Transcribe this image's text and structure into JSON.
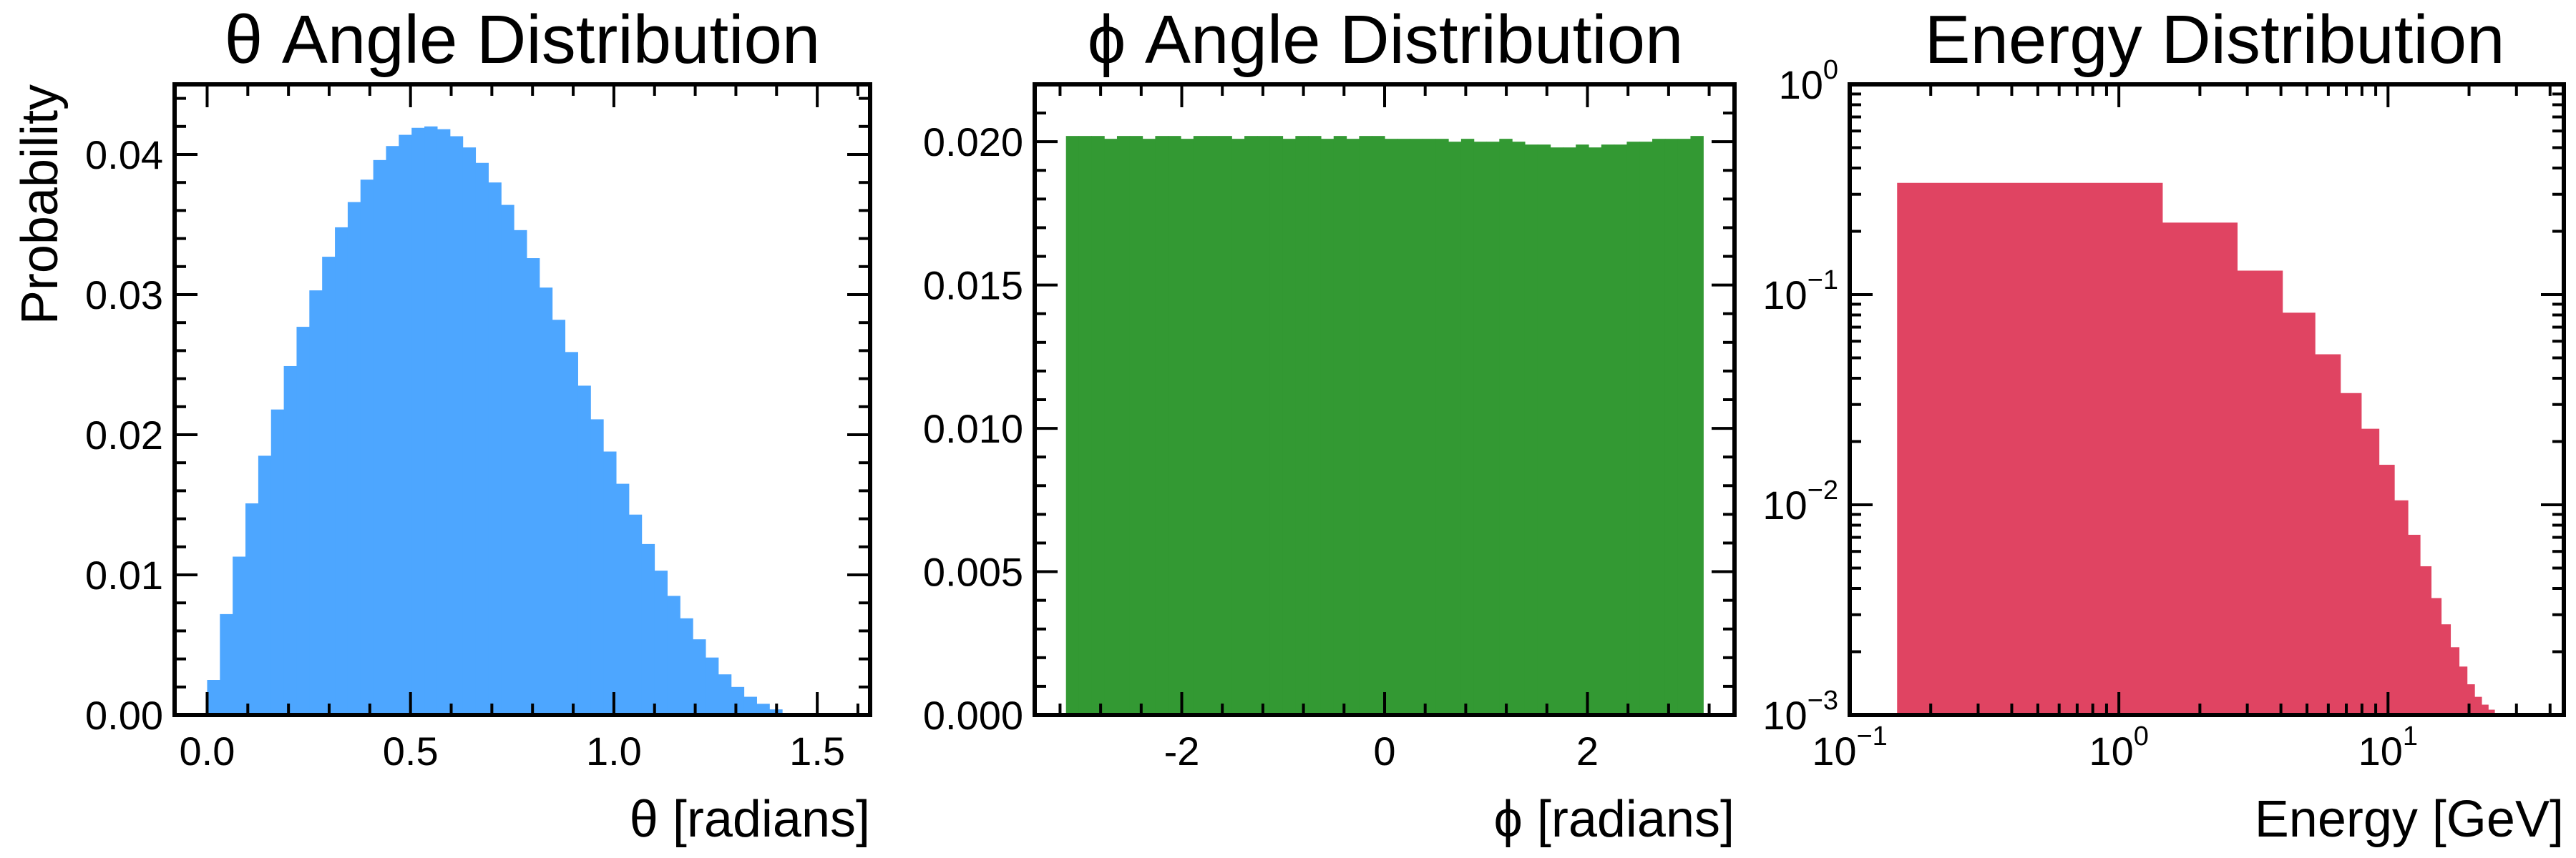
{
  "chart_data": [
    {
      "type": "bar",
      "title": "θ Angle Distribution",
      "xlabel": "θ [radians]",
      "ylabel": "Probability",
      "xlim": [
        -0.08,
        1.63
      ],
      "ylim": [
        0,
        0.045
      ],
      "xticks": [
        0.0,
        0.5,
        1.0,
        1.5
      ],
      "xtick_labels": [
        "0.0",
        "0.5",
        "1.0",
        "1.5"
      ],
      "yticks": [
        0,
        0.01,
        0.02,
        0.03,
        0.04
      ],
      "ytick_labels": [
        "0.00",
        "0.01",
        "0.02",
        "0.03",
        "0.04"
      ],
      "color": "#4da6ff",
      "bin_edges": [
        0.0,
        0.0314,
        0.0628,
        0.0942,
        0.1257,
        0.1571,
        0.1885,
        0.2199,
        0.2513,
        0.2827,
        0.3142,
        0.3456,
        0.377,
        0.4084,
        0.4398,
        0.4712,
        0.5027,
        0.5341,
        0.5655,
        0.5969,
        0.6283,
        0.6597,
        0.6912,
        0.7226,
        0.754,
        0.7854,
        0.8168,
        0.8482,
        0.8796,
        0.9111,
        0.9425,
        0.9739,
        1.0053,
        1.0367,
        1.0681,
        1.0996,
        1.131,
        1.1624,
        1.1938,
        1.2252,
        1.2566,
        1.2881,
        1.3195,
        1.3509,
        1.3823,
        1.4137,
        1.4451,
        1.4765,
        1.508,
        1.5394,
        1.5708
      ],
      "values": [
        0.0025,
        0.0072,
        0.0113,
        0.0151,
        0.0185,
        0.0218,
        0.0249,
        0.0277,
        0.0303,
        0.0327,
        0.0348,
        0.0366,
        0.0382,
        0.0396,
        0.0406,
        0.0414,
        0.0419,
        0.042,
        0.0418,
        0.0413,
        0.0405,
        0.0394,
        0.038,
        0.0364,
        0.0346,
        0.0326,
        0.0305,
        0.0282,
        0.0259,
        0.0235,
        0.0211,
        0.0188,
        0.0165,
        0.0143,
        0.0122,
        0.0103,
        0.0085,
        0.0069,
        0.0054,
        0.0041,
        0.0029,
        0.002,
        0.0013,
        0.0008,
        0.0004,
        0.0001,
        0.0,
        0.0,
        0.0,
        0.0
      ]
    },
    {
      "type": "bar",
      "title": "ϕ Angle Distribution",
      "xlabel": "ϕ [radians]",
      "ylabel": "",
      "xlim": [
        -3.45,
        3.45
      ],
      "ylim": [
        0,
        0.022
      ],
      "xticks": [
        -2,
        0,
        2
      ],
      "xtick_labels": [
        "-2",
        "0",
        "2"
      ],
      "yticks": [
        0,
        0.005,
        0.01,
        0.015,
        0.02
      ],
      "ytick_labels": [
        "0.000",
        "0.005",
        "0.010",
        "0.015",
        "0.020"
      ],
      "color": "#339933",
      "bin_edges": [
        -3.1416,
        -3.0159,
        -2.8903,
        -2.7646,
        -2.6389,
        -2.5133,
        -2.3876,
        -2.2619,
        -2.1363,
        -2.0106,
        -1.885,
        -1.7593,
        -1.6336,
        -1.508,
        -1.3823,
        -1.2566,
        -1.131,
        -1.0053,
        -0.8796,
        -0.754,
        -0.6283,
        -0.5027,
        -0.377,
        -0.2513,
        -0.1257,
        0.0,
        0.1257,
        0.2513,
        0.377,
        0.5027,
        0.6283,
        0.754,
        0.8796,
        1.0053,
        1.131,
        1.2566,
        1.3823,
        1.508,
        1.6336,
        1.7593,
        1.885,
        2.0106,
        2.1363,
        2.2619,
        2.3876,
        2.5133,
        2.6389,
        2.7646,
        2.8903,
        3.0159,
        3.1416
      ],
      "values": [
        0.0202,
        0.0202,
        0.0202,
        0.0201,
        0.0202,
        0.0202,
        0.0201,
        0.0202,
        0.0202,
        0.0201,
        0.0202,
        0.0202,
        0.0202,
        0.0201,
        0.0202,
        0.0202,
        0.0202,
        0.0201,
        0.0202,
        0.0202,
        0.0201,
        0.0202,
        0.0201,
        0.0202,
        0.0202,
        0.0201,
        0.0201,
        0.0201,
        0.0201,
        0.0201,
        0.02,
        0.0201,
        0.02,
        0.02,
        0.0201,
        0.02,
        0.0199,
        0.0199,
        0.0198,
        0.0198,
        0.0199,
        0.0198,
        0.0199,
        0.0199,
        0.02,
        0.02,
        0.0201,
        0.0201,
        0.0201,
        0.0202
      ]
    },
    {
      "type": "bar",
      "title": "Energy Distribution",
      "xlabel": "Energy [GeV]",
      "ylabel": "",
      "xscale": "log",
      "yscale": "log",
      "xlim": [
        0.1,
        45
      ],
      "ylim": [
        0.001,
        1
      ],
      "xticks": [
        0.1,
        1,
        10
      ],
      "xtick_labels": [
        {
          "base": "10",
          "exp": "−1"
        },
        {
          "base": "10",
          "exp": "0"
        },
        {
          "base": "10",
          "exp": "1"
        }
      ],
      "yticks": [
        0.001,
        0.01,
        0.1,
        1
      ],
      "ytick_labels": [
        {
          "base": "10",
          "exp": "−3"
        },
        {
          "base": "10",
          "exp": "−2"
        },
        {
          "base": "10",
          "exp": "−1"
        },
        {
          "base": "10",
          "exp": "0"
        }
      ],
      "color": "#e04462",
      "bin_edges": [
        0.15,
        1.45,
        2.75,
        4.05,
        5.35,
        6.65,
        7.95,
        9.25,
        10.55,
        11.85,
        13.15,
        14.45,
        15.75,
        17.05,
        18.35,
        19.65,
        20.95,
        22.25,
        23.55,
        24.85,
        26.15,
        27.45
      ],
      "values": [
        0.34,
        0.22,
        0.13,
        0.082,
        0.052,
        0.034,
        0.023,
        0.0155,
        0.0105,
        0.0072,
        0.0051,
        0.0036,
        0.0027,
        0.0021,
        0.0017,
        0.0014,
        0.00122,
        0.00112,
        0.00106,
        0.00102,
        0.001
      ]
    }
  ]
}
